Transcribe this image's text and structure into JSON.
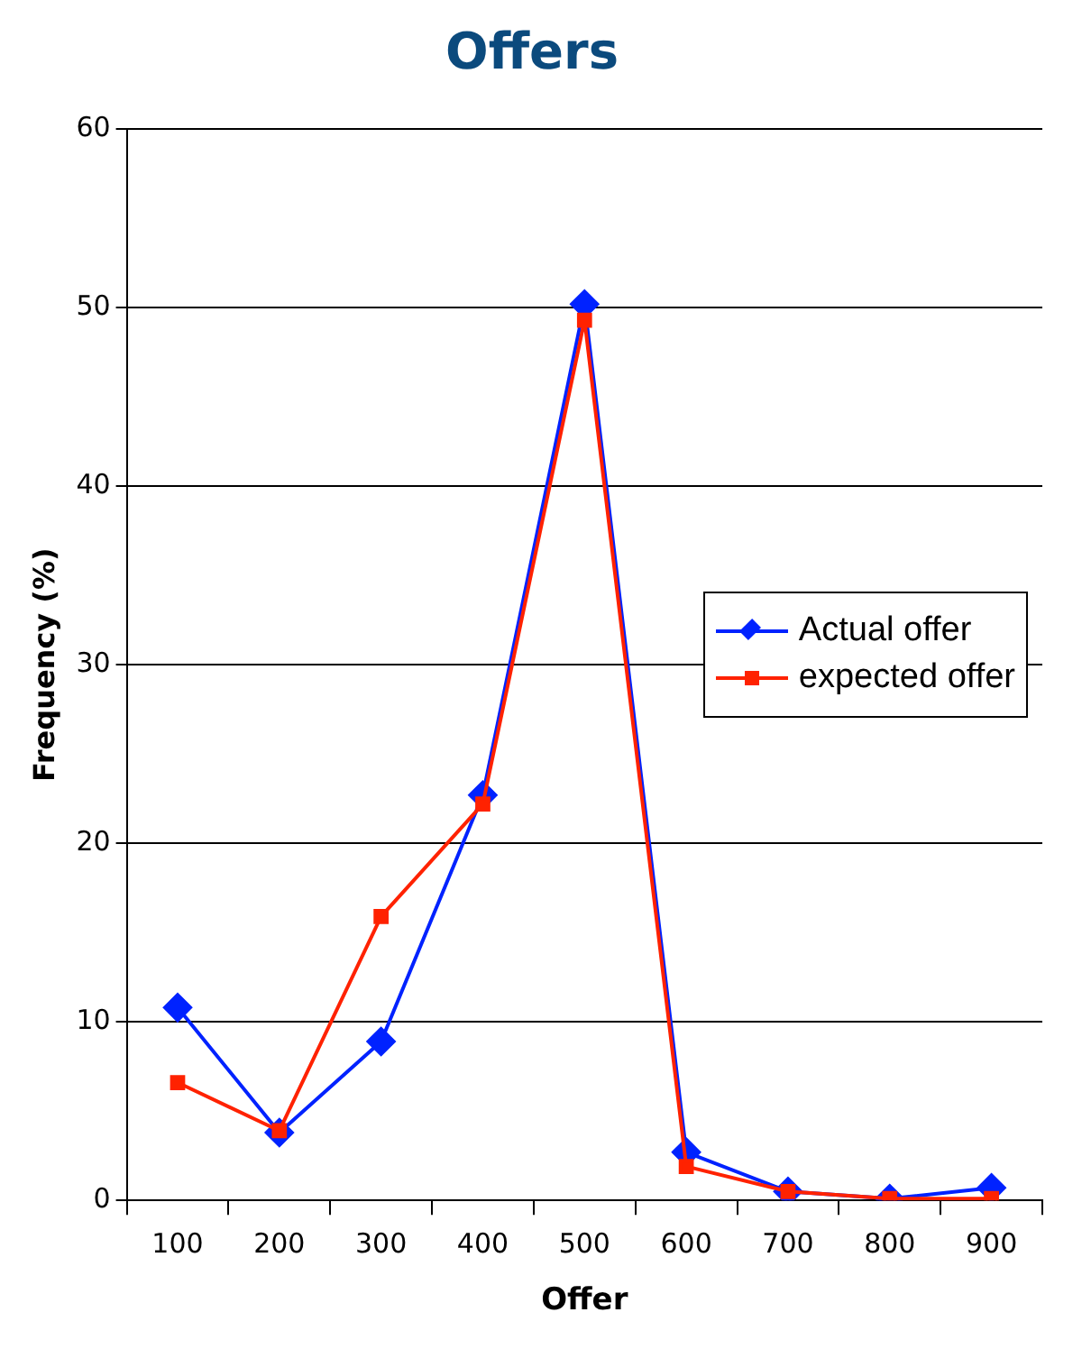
{
  "chart_data": {
    "type": "line",
    "title": "Offers",
    "xlabel": "Offer",
    "ylabel": "Frequency (%)",
    "categories": [
      "100",
      "200",
      "300",
      "400",
      "500",
      "600",
      "700",
      "800",
      "900"
    ],
    "series": [
      {
        "name": "Actual offer",
        "color": "#0022ff",
        "marker": "diamond",
        "values": [
          10.8,
          3.8,
          8.9,
          22.7,
          50.2,
          2.7,
          0.5,
          0.1,
          0.7
        ]
      },
      {
        "name": "expected offer",
        "color": "#ff2200",
        "marker": "square",
        "values": [
          6.6,
          3.9,
          15.9,
          22.2,
          49.3,
          1.9,
          0.5,
          0.1,
          0.1
        ]
      }
    ],
    "ylim": [
      0,
      60
    ],
    "yticks": [
      0,
      10,
      20,
      30,
      40,
      50,
      60
    ],
    "grid": "y",
    "legend": "right",
    "line_style": "solid"
  }
}
